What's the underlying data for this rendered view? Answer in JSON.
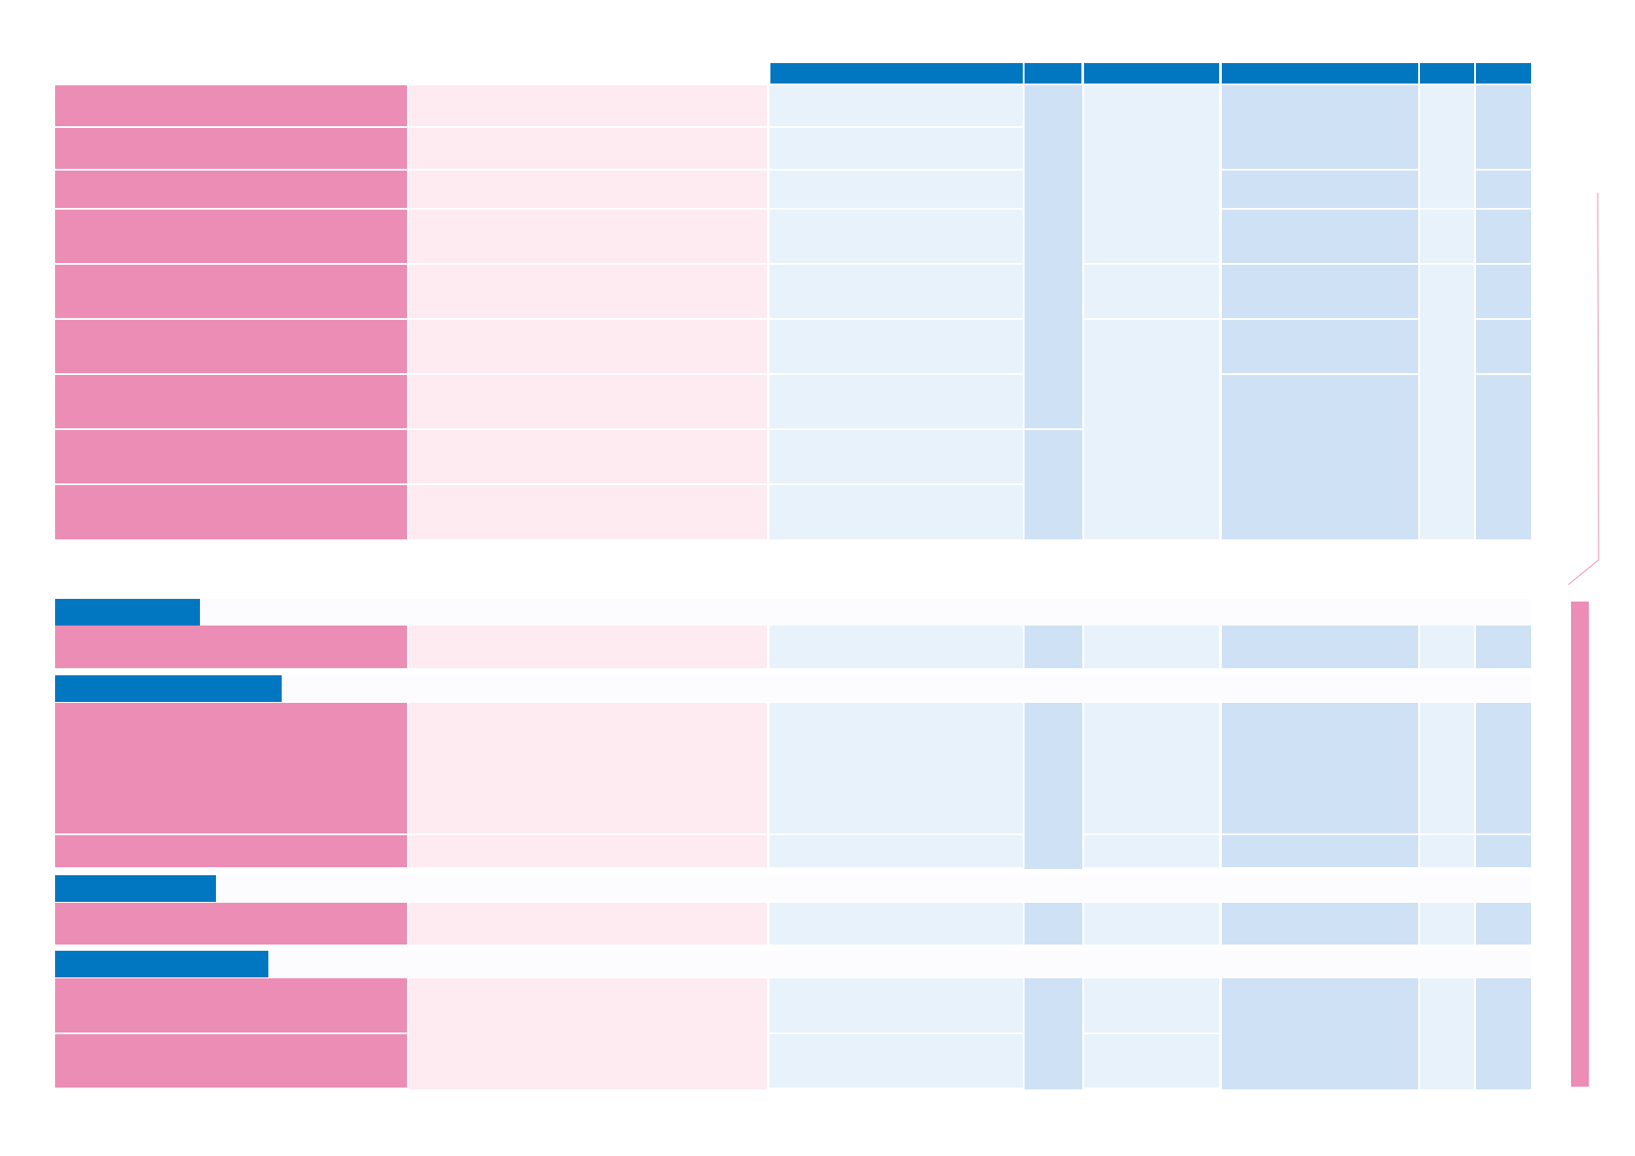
{
  "colors": {
    "header_blue": "#0077c0",
    "pink_dark": "#ec8db5",
    "pink_light": "#fdebf1",
    "blue_light": "#e8f2fb",
    "blue_mid": "#cfe1f4"
  },
  "table": {
    "column_headers": [
      "",
      "",
      "",
      "",
      "",
      ""
    ],
    "sections": [
      {
        "title": "",
        "row_count": 9
      },
      {
        "title": "",
        "row_count": 1
      },
      {
        "title": "",
        "row_count": 2
      },
      {
        "title": "",
        "row_count": 1
      },
      {
        "title": "",
        "row_count": 2
      }
    ]
  }
}
